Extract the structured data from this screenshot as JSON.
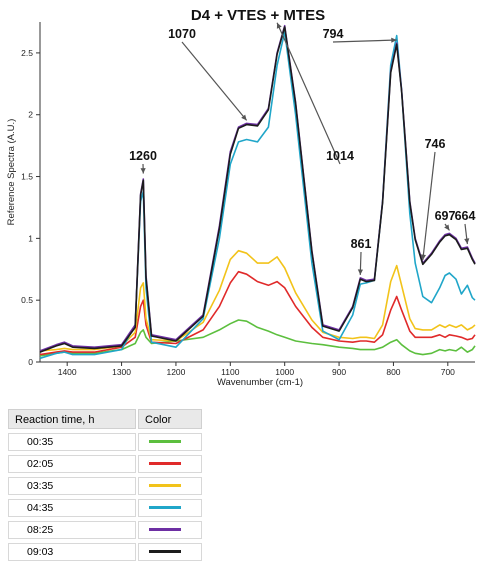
{
  "chart_data": {
    "type": "line",
    "title": "D4 + VTES + MTES",
    "xlabel": "Wavenumber (cm-1)",
    "ylabel": "Reference Spectra (A.U.)",
    "xlim": [
      1450,
      650
    ],
    "x_reversed": true,
    "ylim": [
      0,
      2.75
    ],
    "x_ticks": [
      1400,
      1300,
      1200,
      1100,
      1000,
      900,
      800,
      700
    ],
    "y_ticks": [
      0,
      0.5,
      1,
      1.5,
      2,
      2.5
    ],
    "y_tick_labels": [
      "0",
      "0.5",
      "1",
      "1.5",
      "2",
      "2.5"
    ],
    "grid": false,
    "x": [
      1450,
      1420,
      1405,
      1390,
      1350,
      1300,
      1275,
      1265,
      1260,
      1255,
      1245,
      1200,
      1150,
      1120,
      1100,
      1085,
      1070,
      1050,
      1030,
      1014,
      1000,
      980,
      950,
      930,
      900,
      875,
      861,
      850,
      835,
      820,
      805,
      794,
      785,
      770,
      760,
      746,
      730,
      715,
      705,
      697,
      685,
      675,
      664,
      655,
      650
    ],
    "series": [
      {
        "name": "00:35",
        "color": "#5cbf3e",
        "values": [
          0.05,
          0.07,
          0.08,
          0.07,
          0.07,
          0.1,
          0.15,
          0.24,
          0.26,
          0.2,
          0.15,
          0.17,
          0.2,
          0.26,
          0.31,
          0.34,
          0.33,
          0.28,
          0.25,
          0.22,
          0.2,
          0.17,
          0.15,
          0.14,
          0.12,
          0.11,
          0.1,
          0.1,
          0.1,
          0.12,
          0.16,
          0.18,
          0.14,
          0.09,
          0.07,
          0.06,
          0.07,
          0.1,
          0.09,
          0.1,
          0.09,
          0.12,
          0.08,
          0.1,
          0.13
        ]
      },
      {
        "name": "02:05",
        "color": "#e02a2a",
        "values": [
          0.06,
          0.08,
          0.09,
          0.08,
          0.08,
          0.12,
          0.2,
          0.45,
          0.5,
          0.3,
          0.16,
          0.15,
          0.26,
          0.45,
          0.64,
          0.73,
          0.71,
          0.65,
          0.62,
          0.65,
          0.6,
          0.45,
          0.28,
          0.2,
          0.17,
          0.16,
          0.17,
          0.17,
          0.16,
          0.22,
          0.42,
          0.53,
          0.42,
          0.25,
          0.2,
          0.2,
          0.2,
          0.22,
          0.2,
          0.22,
          0.21,
          0.2,
          0.18,
          0.19,
          0.22
        ]
      },
      {
        "name": "03:35",
        "color": "#f2c31a",
        "values": [
          0.09,
          0.1,
          0.11,
          0.1,
          0.1,
          0.13,
          0.24,
          0.6,
          0.64,
          0.35,
          0.18,
          0.17,
          0.32,
          0.58,
          0.83,
          0.9,
          0.88,
          0.8,
          0.8,
          0.85,
          0.76,
          0.56,
          0.34,
          0.24,
          0.2,
          0.19,
          0.2,
          0.2,
          0.19,
          0.3,
          0.65,
          0.78,
          0.62,
          0.35,
          0.27,
          0.26,
          0.26,
          0.3,
          0.28,
          0.3,
          0.28,
          0.3,
          0.26,
          0.28,
          0.3
        ]
      },
      {
        "name": "04:35",
        "color": "#20a6c9",
        "values": [
          0.03,
          0.07,
          0.08,
          0.06,
          0.06,
          0.1,
          0.3,
          1.3,
          1.38,
          0.6,
          0.16,
          0.12,
          0.35,
          1.0,
          1.6,
          1.78,
          1.8,
          1.78,
          1.9,
          2.4,
          2.67,
          2.0,
          0.8,
          0.25,
          0.18,
          0.38,
          0.63,
          0.64,
          0.66,
          1.3,
          2.4,
          2.64,
          2.2,
          1.2,
          0.8,
          0.53,
          0.48,
          0.6,
          0.7,
          0.72,
          0.67,
          0.55,
          0.62,
          0.52,
          0.5
        ]
      },
      {
        "name": "08:25",
        "color": "#6d2fa3",
        "values": [
          0.09,
          0.14,
          0.16,
          0.13,
          0.12,
          0.14,
          0.3,
          1.36,
          1.48,
          0.7,
          0.22,
          0.18,
          0.38,
          1.1,
          1.7,
          1.9,
          1.93,
          1.92,
          2.05,
          2.5,
          2.72,
          2.1,
          0.9,
          0.3,
          0.26,
          0.45,
          0.68,
          0.66,
          0.67,
          1.3,
          2.35,
          2.58,
          2.2,
          1.3,
          1.0,
          0.8,
          0.88,
          0.98,
          1.03,
          1.04,
          1.0,
          0.92,
          0.93,
          0.84,
          0.8
        ]
      },
      {
        "name": "09:03",
        "color": "#1c1c1c",
        "values": [
          0.08,
          0.13,
          0.15,
          0.12,
          0.11,
          0.13,
          0.28,
          1.35,
          1.47,
          0.68,
          0.21,
          0.17,
          0.37,
          1.08,
          1.68,
          1.89,
          1.92,
          1.91,
          2.04,
          2.49,
          2.71,
          2.09,
          0.89,
          0.29,
          0.25,
          0.44,
          0.67,
          0.65,
          0.66,
          1.29,
          2.34,
          2.57,
          2.19,
          1.29,
          0.99,
          0.79,
          0.87,
          0.97,
          1.02,
          1.03,
          0.99,
          0.91,
          0.92,
          0.83,
          0.79
        ]
      }
    ],
    "annotations": [
      {
        "label": "1260",
        "x": 1260,
        "y": 1.5
      },
      {
        "label": "1070",
        "x": 1070,
        "y": 1.93
      },
      {
        "label": "1014",
        "x": 1014,
        "y": 2.72
      },
      {
        "label": "794",
        "x": 794,
        "y": 2.58
      },
      {
        "label": "861",
        "x": 861,
        "y": 0.68
      },
      {
        "label": "746",
        "x": 746,
        "y": 0.8
      },
      {
        "label": "697",
        "x": 697,
        "y": 1.04
      },
      {
        "label": "664",
        "x": 664,
        "y": 0.93
      }
    ]
  },
  "legend": {
    "header_time": "Reaction time, h",
    "header_color": "Color",
    "rows": [
      {
        "time": "00:35",
        "color": "#5cbf3e"
      },
      {
        "time": "02:05",
        "color": "#e02a2a"
      },
      {
        "time": "03:35",
        "color": "#f2c31a"
      },
      {
        "time": "04:35",
        "color": "#20a6c9"
      },
      {
        "time": "08:25",
        "color": "#6d2fa3"
      },
      {
        "time": "09:03",
        "color": "#1c1c1c"
      }
    ]
  }
}
